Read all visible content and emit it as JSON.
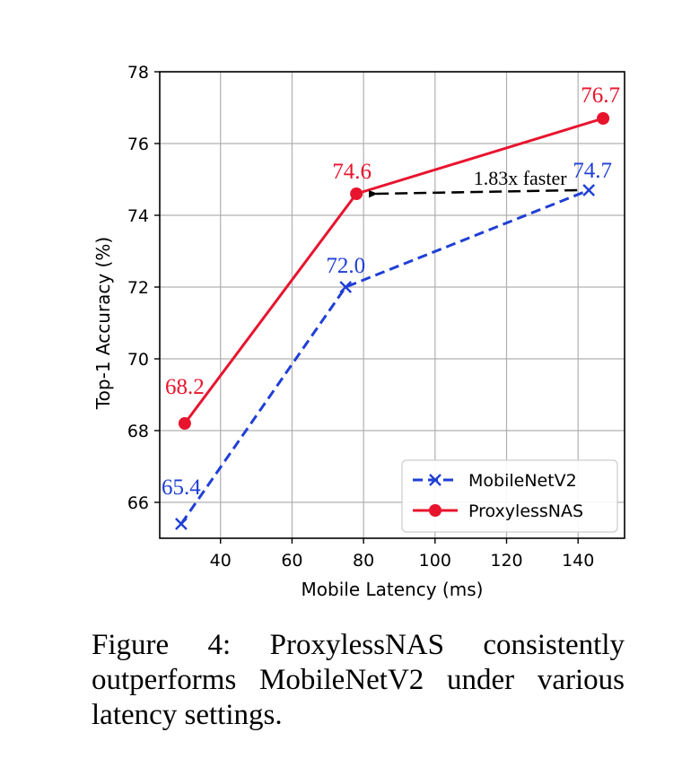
{
  "chart_data": {
    "type": "line",
    "title": "",
    "xlabel": "Mobile Latency (ms)",
    "ylabel": "Top-1 Accuracy (%)",
    "xlim": [
      23,
      153
    ],
    "ylim": [
      65,
      78
    ],
    "xticks": [
      40,
      60,
      80,
      100,
      120,
      140
    ],
    "yticks": [
      66,
      68,
      70,
      72,
      74,
      76,
      78
    ],
    "grid": true,
    "legend_position": "lower-right",
    "series": [
      {
        "name": "MobileNetV2",
        "color": "#1f3fd6",
        "line_style": "dashed",
        "marker": "x",
        "x": [
          29,
          75,
          143
        ],
        "y": [
          65.4,
          72.0,
          74.7
        ],
        "labels": [
          "65.4",
          "72.0",
          "74.7"
        ]
      },
      {
        "name": "ProxylessNAS",
        "color": "#e8142e",
        "line_style": "solid",
        "marker": "circle",
        "x": [
          30,
          78,
          147
        ],
        "y": [
          68.2,
          74.6,
          76.7
        ],
        "labels": [
          "68.2",
          "74.6",
          "76.7"
        ]
      }
    ],
    "annotation": {
      "text": "1.83x faster",
      "from": [
        143,
        74.7
      ],
      "to": [
        78,
        74.6
      ]
    }
  },
  "caption": {
    "text": "Figure 4: ProxylessNAS consistently outperforms MobileNetV2 under various latency settings."
  }
}
